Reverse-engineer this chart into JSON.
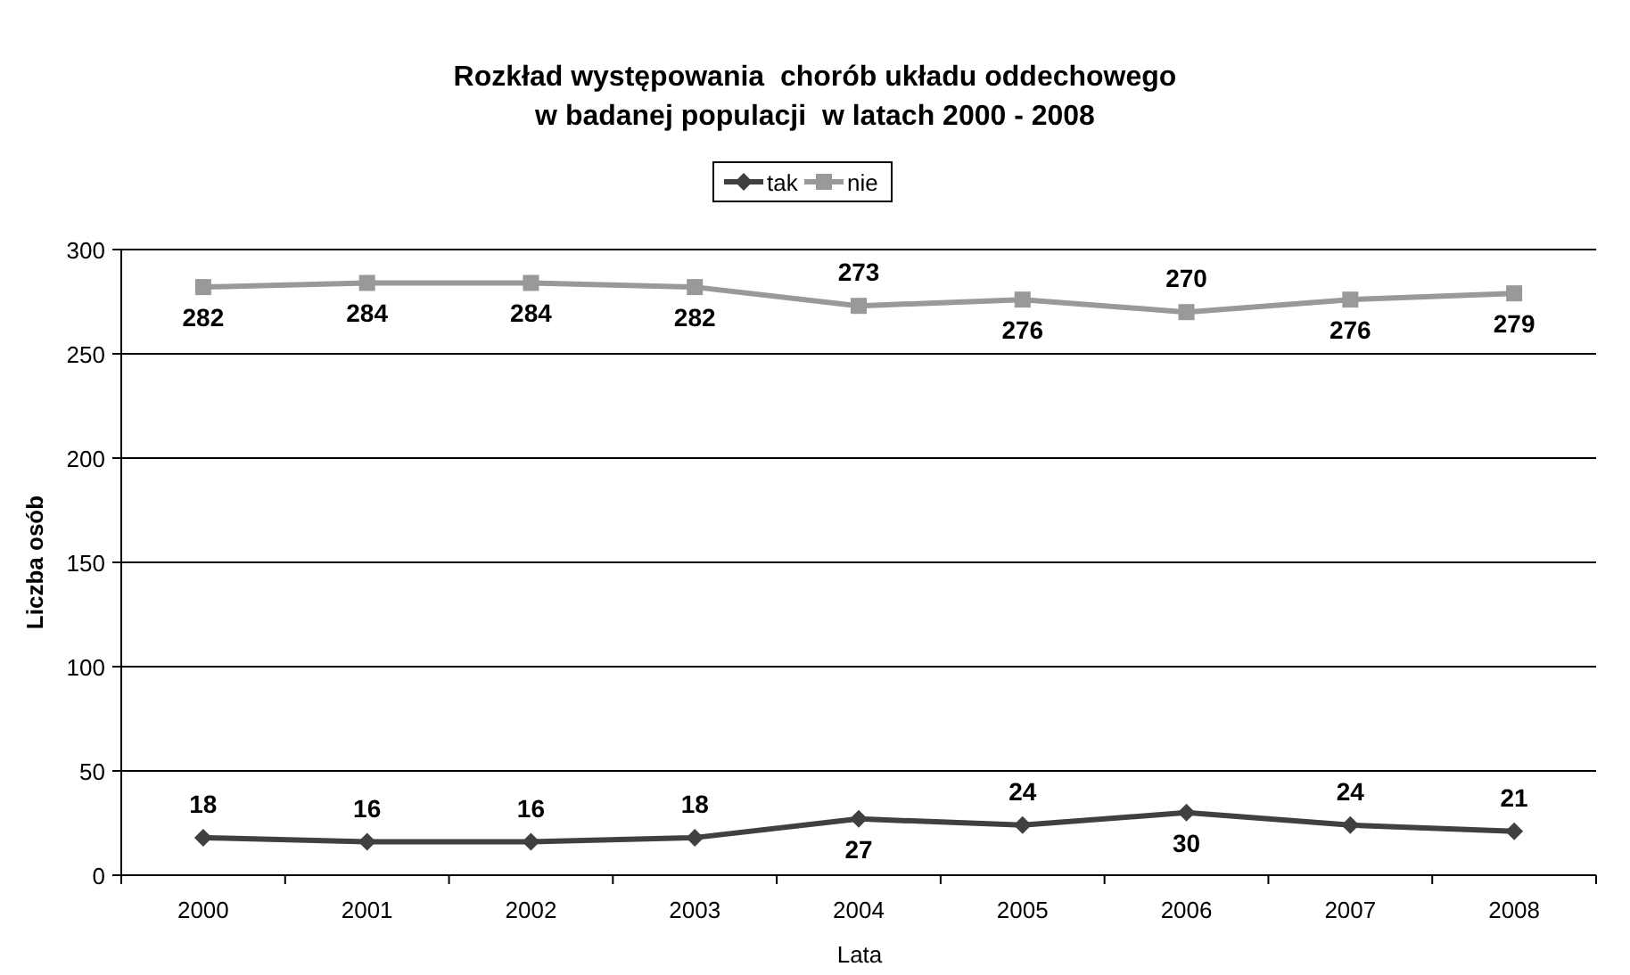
{
  "chart_data": {
    "type": "line",
    "title": "Rozkład występowania  chorób układu oddechowego\nw badanej populacji  w latach 2000 - 2008",
    "xlabel": "Lata",
    "ylabel": "Liczba osób",
    "categories": [
      "2000",
      "2001",
      "2002",
      "2003",
      "2004",
      "2005",
      "2006",
      "2007",
      "2008"
    ],
    "series": [
      {
        "name": "tak",
        "color": "#404040",
        "marker": "diamond",
        "values": [
          18,
          16,
          16,
          18,
          27,
          24,
          30,
          24,
          21
        ]
      },
      {
        "name": "nie",
        "color": "#999999",
        "marker": "square",
        "values": [
          282,
          284,
          284,
          282,
          273,
          276,
          270,
          276,
          279
        ]
      }
    ],
    "ylim": [
      0,
      300
    ],
    "yticks": [
      0,
      50,
      100,
      150,
      200,
      250,
      300
    ],
    "grid": "y",
    "legend": "top",
    "data_labels": true
  }
}
